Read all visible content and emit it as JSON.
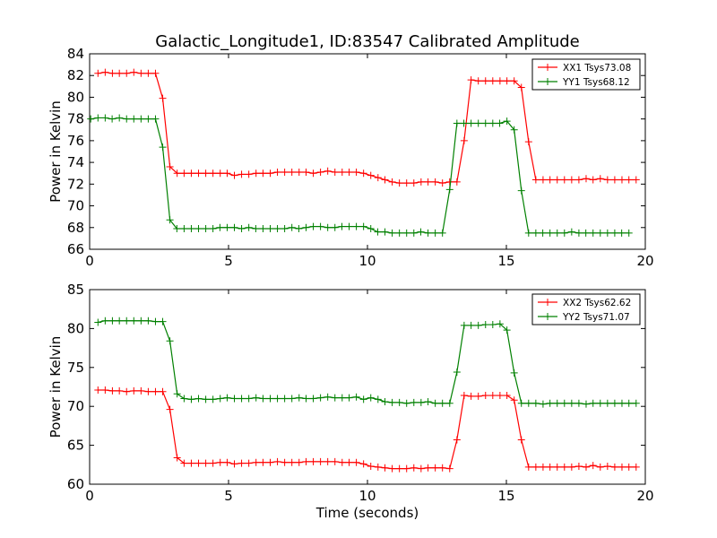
{
  "title": "Galactic_Longitude1, ID:83547 Calibrated Amplitude",
  "chart_data": [
    {
      "type": "line",
      "xlabel": "",
      "ylabel": "Power in Kelvin",
      "xlim": [
        0,
        20
      ],
      "ylim": [
        66,
        84
      ],
      "xticks": [
        0,
        5,
        10,
        15,
        20
      ],
      "yticks": [
        66,
        68,
        70,
        72,
        74,
        76,
        78,
        80,
        82,
        84
      ],
      "grid": false,
      "legend": "top-right",
      "x": [
        0.3,
        0.56,
        0.82,
        1.07,
        1.33,
        1.59,
        1.85,
        2.11,
        2.37,
        2.63,
        2.89,
        3.15,
        3.4,
        3.66,
        3.92,
        4.18,
        4.44,
        4.7,
        4.95,
        5.21,
        5.47,
        5.73,
        5.99,
        6.24,
        6.5,
        6.76,
        7.02,
        7.28,
        7.54,
        7.79,
        8.05,
        8.31,
        8.57,
        8.83,
        9.09,
        9.34,
        9.6,
        9.86,
        10.12,
        10.38,
        10.63,
        10.89,
        11.15,
        11.41,
        11.67,
        11.93,
        12.18,
        12.44,
        12.7,
        12.96,
        13.22,
        13.48,
        13.73,
        13.99,
        14.25,
        14.51,
        14.77,
        15.02,
        15.28,
        15.54,
        15.8,
        16.06,
        16.32,
        16.57,
        16.83,
        17.09,
        17.35,
        17.61,
        17.87,
        18.12,
        18.38,
        18.64,
        18.9,
        19.16,
        19.41,
        19.67
      ],
      "series": [
        {
          "name": "XX1 Tsys73.08",
          "color": "#ff0000",
          "values": [
            82.2,
            82.3,
            82.2,
            82.2,
            82.2,
            82.3,
            82.2,
            82.2,
            82.2,
            79.9,
            73.6,
            73.0,
            73.0,
            73.0,
            73.0,
            73.0,
            73.0,
            73.0,
            73.0,
            72.8,
            72.9,
            72.9,
            73.0,
            73.0,
            73.0,
            73.1,
            73.1,
            73.1,
            73.1,
            73.1,
            73.0,
            73.1,
            73.2,
            73.1,
            73.1,
            73.1,
            73.1,
            73.0,
            72.8,
            72.6,
            72.4,
            72.2,
            72.1,
            72.1,
            72.1,
            72.2,
            72.2,
            72.2,
            72.1,
            72.2,
            72.2,
            76.0,
            81.6,
            81.5,
            81.5,
            81.5,
            81.5,
            81.5,
            81.5,
            80.9,
            75.9,
            72.4,
            72.4,
            72.4,
            72.4,
            72.4,
            72.4,
            72.4,
            72.5,
            72.4,
            72.5,
            72.4,
            72.4,
            72.4,
            72.4,
            72.4
          ]
        },
        {
          "name": "YY1 Tsys68.12",
          "color": "#008000",
          "values": [
            78.0,
            78.1,
            78.1,
            78.0,
            78.1,
            78.0,
            78.0,
            78.0,
            78.0,
            78.0,
            75.4,
            68.7,
            67.9,
            67.9,
            67.9,
            67.9,
            67.9,
            67.9,
            68.0,
            68.0,
            68.0,
            67.9,
            68.0,
            67.9,
            67.9,
            67.9,
            67.9,
            67.9,
            68.0,
            67.9,
            68.0,
            68.1,
            68.1,
            68.0,
            68.0,
            68.1,
            68.1,
            68.1,
            68.1,
            67.9,
            67.6,
            67.6,
            67.5,
            67.5,
            67.5,
            67.5,
            67.6,
            67.5,
            67.5,
            67.5,
            71.5,
            77.6,
            77.6,
            77.6,
            77.6,
            77.6,
            77.6,
            77.6,
            77.8,
            77.0,
            71.4,
            67.5,
            67.5,
            67.5,
            67.5,
            67.5,
            67.5,
            67.6,
            67.5,
            67.5,
            67.5,
            67.5,
            67.5,
            67.5,
            67.5,
            67.5
          ],
          "x_offset": -0.26
        }
      ]
    },
    {
      "type": "line",
      "xlabel": "Time (seconds)",
      "ylabel": "Power in Kelvin",
      "xlim": [
        0,
        20
      ],
      "ylim": [
        60,
        85
      ],
      "xticks": [
        0,
        5,
        10,
        15,
        20
      ],
      "yticks": [
        60,
        65,
        70,
        75,
        80,
        85
      ],
      "grid": false,
      "legend": "top-right",
      "x": [
        0.3,
        0.56,
        0.82,
        1.07,
        1.33,
        1.59,
        1.85,
        2.11,
        2.37,
        2.63,
        2.89,
        3.15,
        3.4,
        3.66,
        3.92,
        4.18,
        4.44,
        4.7,
        4.95,
        5.21,
        5.47,
        5.73,
        5.99,
        6.24,
        6.5,
        6.76,
        7.02,
        7.28,
        7.54,
        7.79,
        8.05,
        8.31,
        8.57,
        8.83,
        9.09,
        9.34,
        9.6,
        9.86,
        10.12,
        10.38,
        10.63,
        10.89,
        11.15,
        11.41,
        11.67,
        11.93,
        12.18,
        12.44,
        12.7,
        12.96,
        13.22,
        13.48,
        13.73,
        13.99,
        14.25,
        14.51,
        14.77,
        15.02,
        15.28,
        15.54,
        15.8,
        16.06,
        16.32,
        16.57,
        16.83,
        17.09,
        17.35,
        17.61,
        17.87,
        18.12,
        18.38,
        18.64,
        18.9,
        19.16,
        19.41,
        19.67
      ],
      "series": [
        {
          "name": "XX2 Tsys62.62",
          "color": "#ff0000",
          "values": [
            72.1,
            72.1,
            72.0,
            72.0,
            71.9,
            72.0,
            72.0,
            71.9,
            71.9,
            71.9,
            69.6,
            63.4,
            62.7,
            62.7,
            62.7,
            62.7,
            62.7,
            62.8,
            62.8,
            62.6,
            62.7,
            62.7,
            62.8,
            62.8,
            62.8,
            62.9,
            62.8,
            62.8,
            62.8,
            62.9,
            62.9,
            62.9,
            62.9,
            62.9,
            62.8,
            62.8,
            62.8,
            62.6,
            62.3,
            62.2,
            62.1,
            62.0,
            62.0,
            62.0,
            62.1,
            62.0,
            62.1,
            62.1,
            62.1,
            62.0,
            65.7,
            71.4,
            71.3,
            71.3,
            71.4,
            71.4,
            71.4,
            71.4,
            70.8,
            65.7,
            62.2,
            62.2,
            62.2,
            62.2,
            62.2,
            62.2,
            62.2,
            62.3,
            62.2,
            62.4,
            62.2,
            62.3,
            62.2,
            62.2,
            62.2,
            62.2
          ]
        },
        {
          "name": "YY2 Tsys71.07",
          "color": "#008000",
          "values": [
            80.8,
            81.0,
            81.0,
            81.0,
            81.0,
            81.0,
            81.0,
            81.0,
            80.9,
            80.9,
            78.4,
            71.6,
            71.0,
            70.9,
            71.0,
            70.9,
            70.9,
            71.0,
            71.1,
            71.0,
            71.0,
            71.0,
            71.1,
            71.0,
            71.0,
            71.0,
            71.0,
            71.0,
            71.1,
            71.0,
            71.0,
            71.1,
            71.2,
            71.1,
            71.1,
            71.1,
            71.2,
            70.9,
            71.1,
            70.9,
            70.6,
            70.5,
            70.5,
            70.4,
            70.5,
            70.5,
            70.6,
            70.4,
            70.4,
            70.4,
            74.4,
            80.4,
            80.4,
            80.4,
            80.5,
            80.5,
            80.6,
            79.8,
            74.3,
            70.4,
            70.4,
            70.4,
            70.3,
            70.4,
            70.4,
            70.4,
            70.4,
            70.4,
            70.3,
            70.4,
            70.4,
            70.4,
            70.4,
            70.4,
            70.4,
            70.4
          ],
          "x_offset": 0
        }
      ]
    }
  ]
}
